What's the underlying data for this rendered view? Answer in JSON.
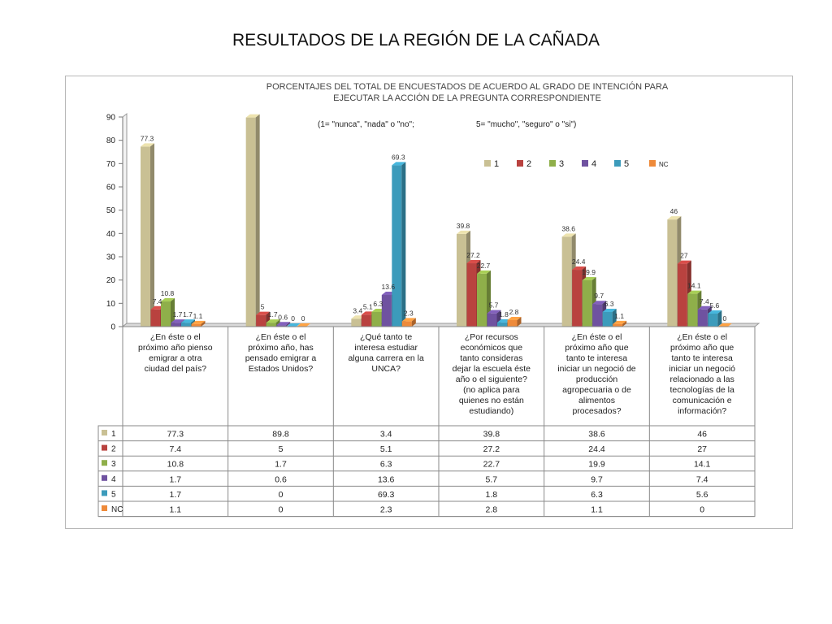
{
  "slide": {
    "title": "RESULTADOS DE LA REGIÓN DE LA CAÑADA"
  },
  "chart_data": {
    "type": "bar",
    "title": "PORCENTAJES DEL TOTAL DE ENCUESTADOS  DE  ACUERDO AL GRADO DE INTENCIÓN PARA",
    "title_line2": "EJECUTAR LA ACCIÓN DE LA PREGUNTA CORRESPONDIENTE",
    "subtitle_left": "(1= \"nunca\", \"nada\" o  \"no\";",
    "subtitle_right": "5= \"mucho\", \"seguro\" o \"si\")",
    "ylim": [
      0,
      90
    ],
    "yticks": [
      0,
      10,
      20,
      30,
      40,
      50,
      60,
      70,
      80,
      90
    ],
    "grid": false,
    "legend_position": "top-right",
    "categories": [
      [
        "¿En éste o el",
        "próximo año pienso",
        "emigrar  a otra",
        "ciudad del país?"
      ],
      [
        "¿En éste o el",
        "próximo año, has",
        "pensado emigrar a",
        "Estados Unidos?"
      ],
      [
        "¿Qué tanto te",
        "interesa estudiar",
        "alguna carrera en la",
        "UNCA?"
      ],
      [
        "¿Por recursos",
        "económicos que",
        "tanto consideras",
        "dejar la escuela éste",
        "año o el siguiente?",
        "(no aplica para",
        "quienes no están",
        "estudiando)"
      ],
      [
        "¿En éste o  el",
        "próximo año que",
        "tanto te interesa",
        "iniciar un negoció de",
        "producción",
        "agropecuaria o de",
        "alimentos",
        "procesados?"
      ],
      [
        "¿En éste o  el",
        "próximo año que",
        "tanto te interesa",
        "iniciar un negoció",
        "relacionado a las",
        "tecnologías de la",
        "comunicación e",
        "información?"
      ]
    ],
    "series": [
      {
        "name": "1",
        "color": "#c9c094",
        "values": [
          77.3,
          89.8,
          3.4,
          39.8,
          38.6,
          46
        ]
      },
      {
        "name": "2",
        "color": "#b9423f",
        "values": [
          7.4,
          5,
          5.1,
          27.2,
          24.4,
          27
        ]
      },
      {
        "name": "3",
        "color": "#8faf4a",
        "values": [
          10.8,
          1.7,
          6.3,
          22.7,
          19.9,
          14.1
        ]
      },
      {
        "name": "4",
        "color": "#6f52a0",
        "values": [
          1.7,
          0.6,
          13.6,
          5.7,
          9.7,
          7.4
        ]
      },
      {
        "name": "5",
        "color": "#3c9bbb",
        "values": [
          1.7,
          0,
          69.3,
          1.8,
          6.3,
          5.6
        ]
      },
      {
        "name": "NC",
        "color": "#ee8a3a",
        "values": [
          1.1,
          0,
          2.3,
          2.8,
          1.1,
          0
        ]
      }
    ],
    "bar_labels": [
      [
        "77.3",
        "7.4",
        "10.8",
        "1.7",
        "1.7",
        "1.1"
      ],
      [
        "",
        "5",
        "1.7",
        "0.6",
        "0",
        "0"
      ],
      [
        "3.4",
        "5.1",
        "6.3",
        "13.6",
        "69.3",
        "2.3"
      ],
      [
        "39.8",
        "27.2",
        "22.7",
        "5.7",
        "1.8",
        "2.8"
      ],
      [
        "38.6",
        "24.4",
        "19.9",
        "9.7",
        "6.3",
        "1.1"
      ],
      [
        "46",
        "27",
        "14.1",
        "7.4",
        "5.6",
        "0"
      ]
    ],
    "table": [
      [
        "77.3",
        "89.8",
        "3.4",
        "39.8",
        "38.6",
        "46"
      ],
      [
        "7.4",
        "5",
        "5.1",
        "27.2",
        "24.4",
        "27"
      ],
      [
        "10.8",
        "1.7",
        "6.3",
        "22.7",
        "19.9",
        "14.1"
      ],
      [
        "1.7",
        "0.6",
        "13.6",
        "5.7",
        "9.7",
        "7.4"
      ],
      [
        "1.7",
        "0",
        "69.3",
        "1.8",
        "6.3",
        "5.6"
      ],
      [
        "1.1",
        "0",
        "2.3",
        "2.8",
        "1.1",
        "0"
      ]
    ]
  }
}
